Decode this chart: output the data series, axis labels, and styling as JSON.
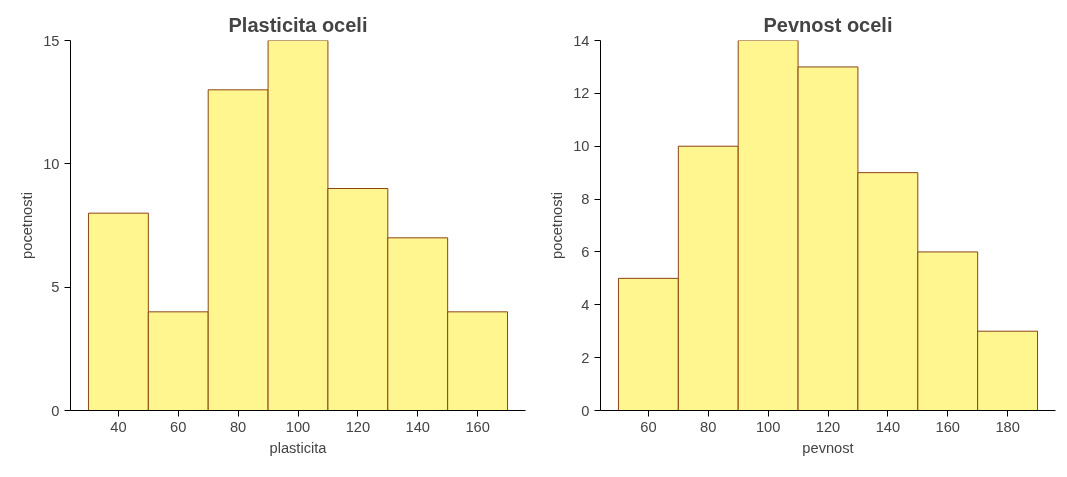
{
  "chart_data": [
    {
      "type": "histogram",
      "title": "Plasticita oceli",
      "xlabel": "plasticita",
      "ylabel": "pocetnosti",
      "bins": [
        30,
        50,
        70,
        90,
        110,
        130,
        150,
        170
      ],
      "values": [
        8,
        4,
        13,
        15,
        9,
        7,
        4
      ],
      "color": "#fff68f",
      "xlim": [
        24,
        176
      ],
      "ylim": [
        0,
        15
      ],
      "xticks": [
        40,
        60,
        80,
        100,
        120,
        140,
        160
      ],
      "yticks": [
        0,
        5,
        10,
        15
      ],
      "grid": false
    },
    {
      "type": "histogram",
      "title": "Pevnost oceli",
      "xlabel": "pevnost",
      "ylabel": "pocetnosti",
      "bins": [
        50,
        70,
        90,
        110,
        130,
        150,
        170,
        190
      ],
      "values": [
        5,
        10,
        14,
        13,
        9,
        6,
        3
      ],
      "color": "#fff68f",
      "xlim": [
        44,
        196
      ],
      "ylim": [
        0,
        14
      ],
      "xticks": [
        60,
        80,
        100,
        120,
        140,
        160,
        180
      ],
      "yticks": [
        0,
        2,
        4,
        6,
        8,
        10,
        12,
        14
      ],
      "grid": false
    }
  ]
}
